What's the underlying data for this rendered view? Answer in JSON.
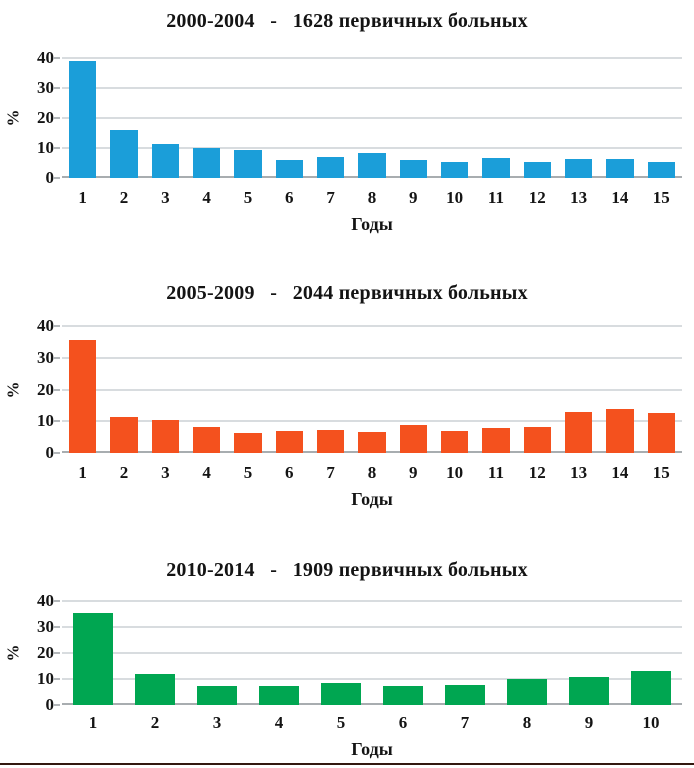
{
  "chart_data": [
    {
      "type": "bar",
      "title": "2000-2004   -   1628 первичных больных",
      "xlabel": "Годы",
      "ylabel": "%",
      "ylim": [
        0,
        40
      ],
      "yticks": [
        0,
        10,
        20,
        30,
        40
      ],
      "bar_color": "#1b9ed9",
      "grid": true,
      "legend": "none",
      "categories": [
        "1",
        "2",
        "3",
        "4",
        "5",
        "6",
        "7",
        "8",
        "9",
        "10",
        "11",
        "12",
        "13",
        "14",
        "15"
      ],
      "values": [
        39,
        16,
        11.5,
        10,
        9.5,
        6,
        7,
        8.5,
        6,
        5.5,
        6.8,
        5.5,
        6.2,
        6.5,
        5.5
      ]
    },
    {
      "type": "bar",
      "title": "2005-2009   -   2044 первичных больных",
      "xlabel": "Годы",
      "ylabel": "%",
      "ylim": [
        0,
        40
      ],
      "yticks": [
        0,
        10,
        20,
        30,
        40
      ],
      "bar_color": "#f4511e",
      "grid": true,
      "legend": "none",
      "categories": [
        "1",
        "2",
        "3",
        "4",
        "5",
        "6",
        "7",
        "8",
        "9",
        "10",
        "11",
        "12",
        "13",
        "14",
        "15"
      ],
      "values": [
        35.5,
        11.2,
        10.5,
        8.3,
        6.2,
        7,
        7.3,
        6.5,
        8.7,
        7,
        8,
        8.2,
        12.8,
        13.8,
        12.6
      ]
    },
    {
      "type": "bar",
      "title": "2010-2014   -   1909 первичных больных",
      "xlabel": "Годы",
      "ylabel": "%",
      "ylim": [
        0,
        40
      ],
      "yticks": [
        0,
        10,
        20,
        30,
        40
      ],
      "bar_color": "#00a651",
      "grid": true,
      "legend": "none",
      "categories": [
        "1",
        "2",
        "3",
        "4",
        "5",
        "6",
        "7",
        "8",
        "9",
        "10"
      ],
      "values": [
        35.5,
        12,
        7.2,
        7.2,
        8.5,
        7.5,
        7.8,
        10,
        10.8,
        13.2
      ]
    }
  ]
}
